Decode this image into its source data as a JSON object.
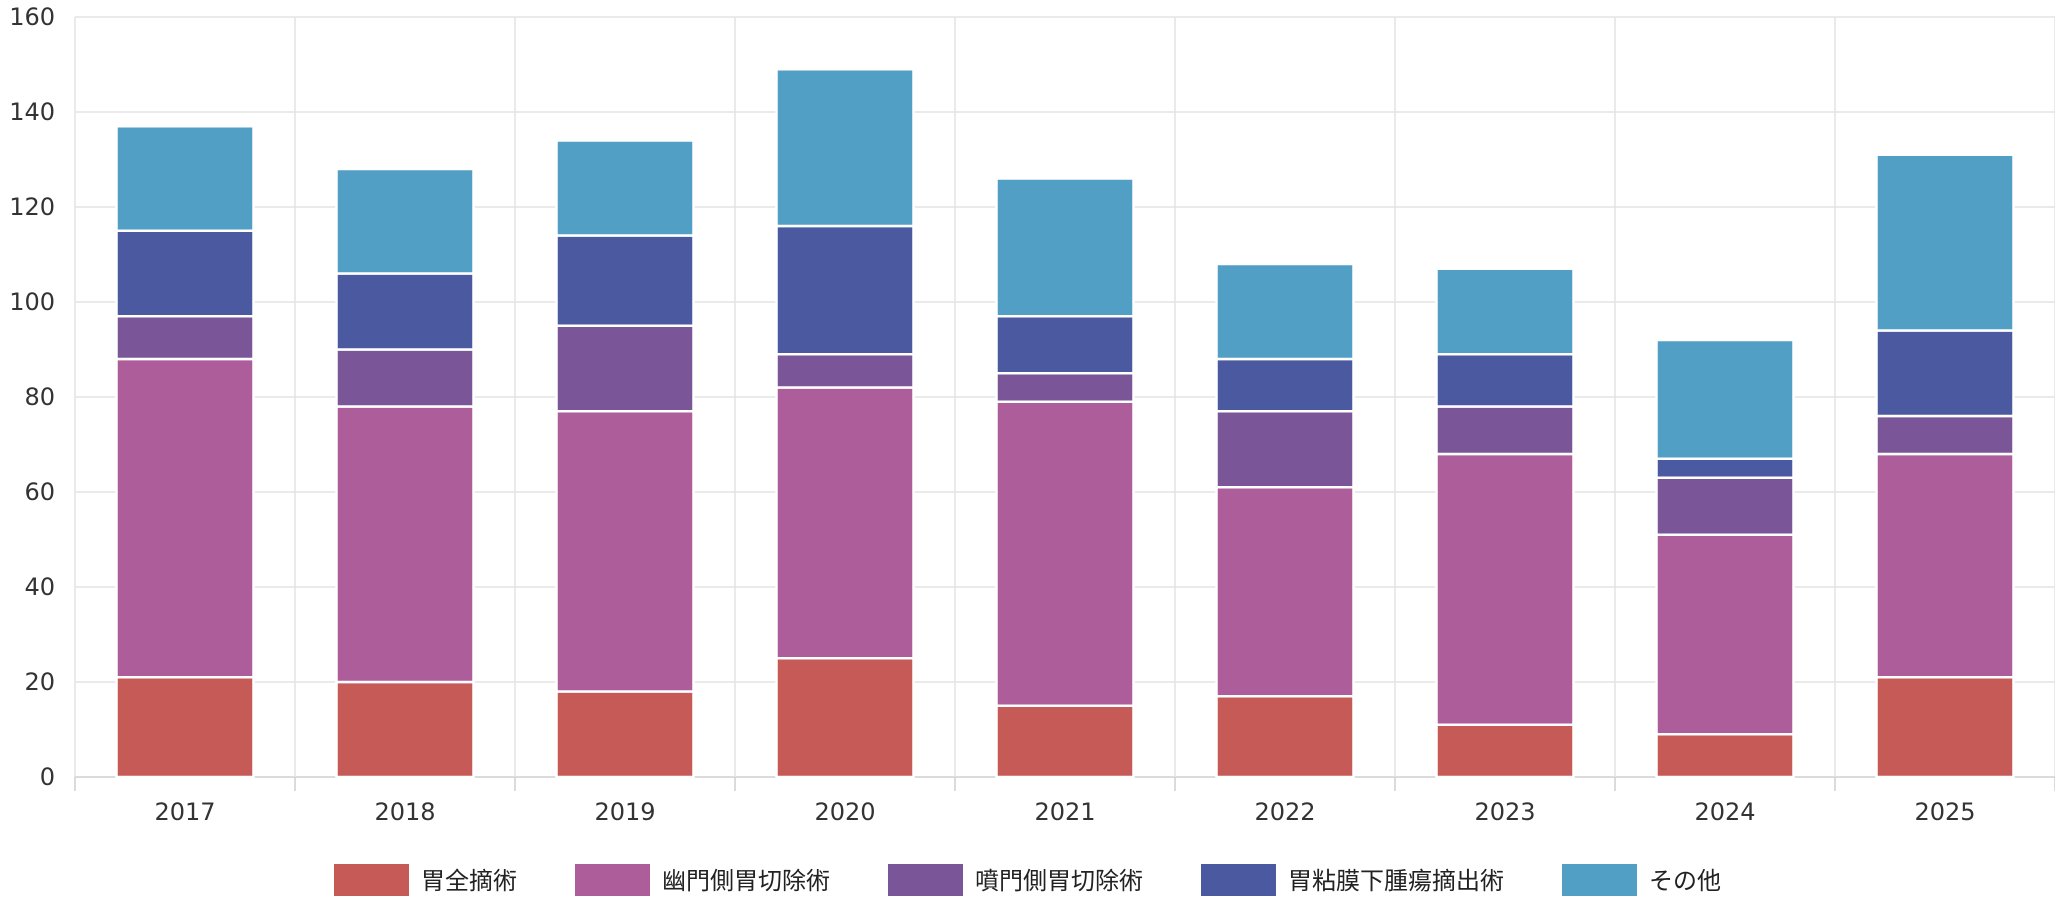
{
  "chart_data": {
    "type": "bar",
    "stacked": true,
    "title": "",
    "xlabel": "",
    "ylabel": "",
    "ylim": [
      0,
      160
    ],
    "yticks": [
      0,
      20,
      40,
      60,
      80,
      100,
      120,
      140,
      160
    ],
    "grid": true,
    "legend_position": "bottom-center",
    "categories": [
      "2017",
      "2018",
      "2019",
      "2020",
      "2021",
      "2022",
      "2023",
      "2024",
      "2025"
    ],
    "series": [
      {
        "name": "胃全摘術",
        "color": "#c65a57",
        "values": [
          21,
          20,
          18,
          25,
          15,
          17,
          11,
          9,
          21
        ]
      },
      {
        "name": "幽門側胃切除術",
        "color": "#ad5d9a",
        "values": [
          67,
          58,
          59,
          57,
          64,
          44,
          57,
          42,
          47
        ]
      },
      {
        "name": "噴門側胃切除術",
        "color": "#7a5699",
        "values": [
          9,
          12,
          18,
          7,
          6,
          16,
          10,
          12,
          8
        ]
      },
      {
        "name": "胃粘膜下腫瘍摘出術",
        "color": "#4b5aa0",
        "values": [
          18,
          16,
          19,
          27,
          12,
          11,
          11,
          4,
          18
        ]
      },
      {
        "name": "その他",
        "color": "#529fc5",
        "values": [
          22,
          22,
          20,
          33,
          29,
          20,
          18,
          25,
          37
        ]
      }
    ]
  }
}
